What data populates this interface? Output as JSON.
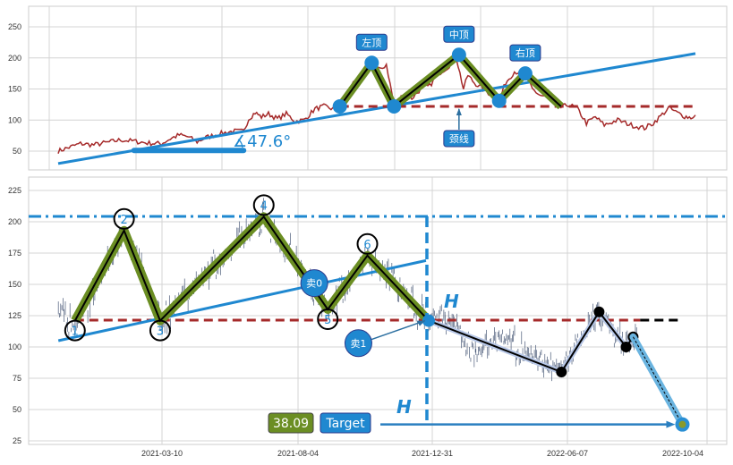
{
  "chart_data": [
    {
      "type": "line",
      "panel": "top",
      "grid": true,
      "ylim": [
        20,
        282
      ],
      "yticks": [
        50,
        100,
        150,
        200,
        250
      ],
      "colors": {
        "price": "#a52a2a",
        "trend": "#1f88d0",
        "neckline": "#a52a2a",
        "zigzag": "#6b8e23",
        "pivot": "#1f88d0",
        "label_bg": "#1f88d0"
      },
      "price": [
        [
          0,
          50
        ],
        [
          1.4,
          55
        ],
        [
          3.5,
          62
        ],
        [
          5.6,
          60
        ],
        [
          7.7,
          64
        ],
        [
          9.8,
          68
        ],
        [
          11.9,
          66
        ],
        [
          14,
          63
        ],
        [
          16.2,
          62
        ],
        [
          17.6,
          70
        ],
        [
          19,
          76
        ],
        [
          20.4,
          73
        ],
        [
          21.8,
          65
        ],
        [
          23.2,
          72
        ],
        [
          25.3,
          78
        ],
        [
          27.4,
          82
        ],
        [
          29.1,
          82
        ],
        [
          29.9,
          102
        ],
        [
          30.9,
          112
        ],
        [
          31.9,
          105
        ],
        [
          33,
          110
        ],
        [
          34.4,
          102
        ],
        [
          35.8,
          110
        ],
        [
          37.2,
          98
        ],
        [
          38.6,
          100
        ],
        [
          40.3,
          118
        ],
        [
          41.7,
          122
        ],
        [
          43.1,
          118
        ],
        [
          44.2,
          122
        ],
        [
          46.3,
          160
        ],
        [
          47.8,
          175
        ],
        [
          49.2,
          192
        ],
        [
          50.6,
          180
        ],
        [
          51.5,
          190
        ],
        [
          52.7,
          125
        ],
        [
          54.1,
          140
        ],
        [
          55.5,
          135
        ],
        [
          56.9,
          150
        ],
        [
          58.3,
          155
        ],
        [
          59.7,
          175
        ],
        [
          61.1,
          185
        ],
        [
          62.5,
          200
        ],
        [
          63.6,
          150
        ],
        [
          64.3,
          172
        ],
        [
          65.3,
          160
        ],
        [
          66.7,
          150
        ],
        [
          69.2,
          131
        ],
        [
          70.2,
          160
        ],
        [
          71.6,
          178
        ],
        [
          73.3,
          175
        ],
        [
          74.4,
          150
        ],
        [
          75.6,
          140
        ],
        [
          76.8,
          137
        ],
        [
          78.9,
          120
        ],
        [
          80.1,
          125
        ],
        [
          81.5,
          118
        ],
        [
          82.9,
          95
        ],
        [
          84.3,
          105
        ],
        [
          85.7,
          92
        ],
        [
          87.8,
          100
        ],
        [
          89.9,
          92
        ],
        [
          92,
          87
        ],
        [
          93.4,
          95
        ],
        [
          95.1,
          112
        ],
        [
          95.8,
          120
        ],
        [
          96.9,
          113
        ],
        [
          98.3,
          106
        ],
        [
          99.3,
          104
        ],
        [
          100,
          108
        ]
      ],
      "trendline": [
        [
          0,
          30
        ],
        [
          100,
          207
        ]
      ],
      "angle_baseline": {
        "from": 11.9,
        "to": 29.1,
        "value": 51
      },
      "angle_label": "∡47.6°",
      "neckline": {
        "from": 44.2,
        "to": 100,
        "value": 122
      },
      "zigzag": [
        [
          44.2,
          122
        ],
        [
          49.2,
          192
        ],
        [
          52.7,
          122
        ],
        [
          62.9,
          205
        ],
        [
          69.2,
          131
        ],
        [
          73.3,
          175
        ],
        [
          78.9,
          122
        ]
      ],
      "annotations": [
        {
          "text": "左顶",
          "at": [
            49.2,
            192
          ]
        },
        {
          "text": "中顶",
          "at": [
            62.9,
            205
          ]
        },
        {
          "text": "右顶",
          "at": [
            73.3,
            175
          ]
        },
        {
          "text": "颈线",
          "at": [
            62.9,
            122
          ]
        }
      ]
    },
    {
      "type": "bar",
      "panel": "bottom",
      "grid": true,
      "ylim": [
        22,
        234
      ],
      "yticks": [
        25,
        50,
        75,
        100,
        125,
        150,
        175,
        200,
        225
      ],
      "xticks": [
        "2021-03-10",
        "2021-08-04",
        "2021-12-31",
        "2022-06-07",
        "2022-10-04"
      ],
      "colors": {
        "bars": "#4a5a78",
        "trend": "#1f88d0",
        "neckline": "#a52a2a",
        "zigzag": "#6b8e23",
        "projection": "#6ab4e0",
        "label_bg": "#1f88d0",
        "value_bg": "#6b8e23"
      },
      "price_path": [
        [
          "2020-11-18",
          128
        ],
        [
          "2020-12-06",
          116
        ],
        [
          "2021-01-28",
          193
        ],
        [
          "2021-03-08",
          121
        ],
        [
          "2021-06-28",
          204
        ],
        [
          "2021-09-06",
          130
        ],
        [
          "2021-10-20",
          173
        ],
        [
          "2021-12-27",
          121
        ],
        [
          "2022-01-15",
          128
        ],
        [
          "2022-02-20",
          96
        ],
        [
          "2022-03-25",
          106
        ],
        [
          "2022-05-31",
          80
        ],
        [
          "2022-07-04",
          128
        ],
        [
          "2022-07-27",
          100
        ],
        [
          "2022-08-05",
          108
        ]
      ],
      "pattern_points": [
        {
          "label": "1",
          "date": "2020-12-06",
          "value": 121,
          "kind": "trough"
        },
        {
          "label": "2",
          "date": "2021-01-28",
          "value": 193,
          "kind": "peak"
        },
        {
          "label": "3",
          "date": "2021-03-08",
          "value": 121,
          "kind": "trough"
        },
        {
          "label": "4",
          "date": "2021-06-28",
          "value": 204,
          "kind": "peak"
        },
        {
          "label": "5",
          "date": "2021-09-06",
          "value": 130,
          "kind": "trough"
        },
        {
          "label": "6",
          "date": "2021-10-20",
          "value": 173,
          "kind": "peak"
        }
      ],
      "breakout": {
        "date": "2021-12-27",
        "value": 121
      },
      "after_path": [
        [
          "2021-12-27",
          121
        ],
        [
          "2022-05-31",
          80
        ],
        [
          "2022-07-04",
          128
        ],
        [
          "2022-07-27",
          100
        ],
        [
          "2022-08-02",
          108
        ]
      ],
      "projection": [
        [
          "2022-08-02",
          108
        ],
        [
          "2022-09-13",
          38.09
        ]
      ],
      "top_line": 204.3,
      "neckline": {
        "from": "2020-12-06",
        "to": "2022-08-08",
        "value": 121.4,
        "extend_to": "2022-09-13"
      },
      "trendline": [
        [
          "2020-11-18",
          105
        ],
        [
          "2021-12-24",
          169
        ]
      ],
      "height_marker": "H",
      "sell_signals": [
        {
          "label": "卖0",
          "date": "2021-08-22",
          "value": 151
        },
        {
          "label": "卖1",
          "date": "2021-10-10",
          "value": 103,
          "arrow_to": [
            "2021-12-27",
            121
          ]
        }
      ],
      "target_value": "38.09",
      "target_label": "Target"
    }
  ]
}
